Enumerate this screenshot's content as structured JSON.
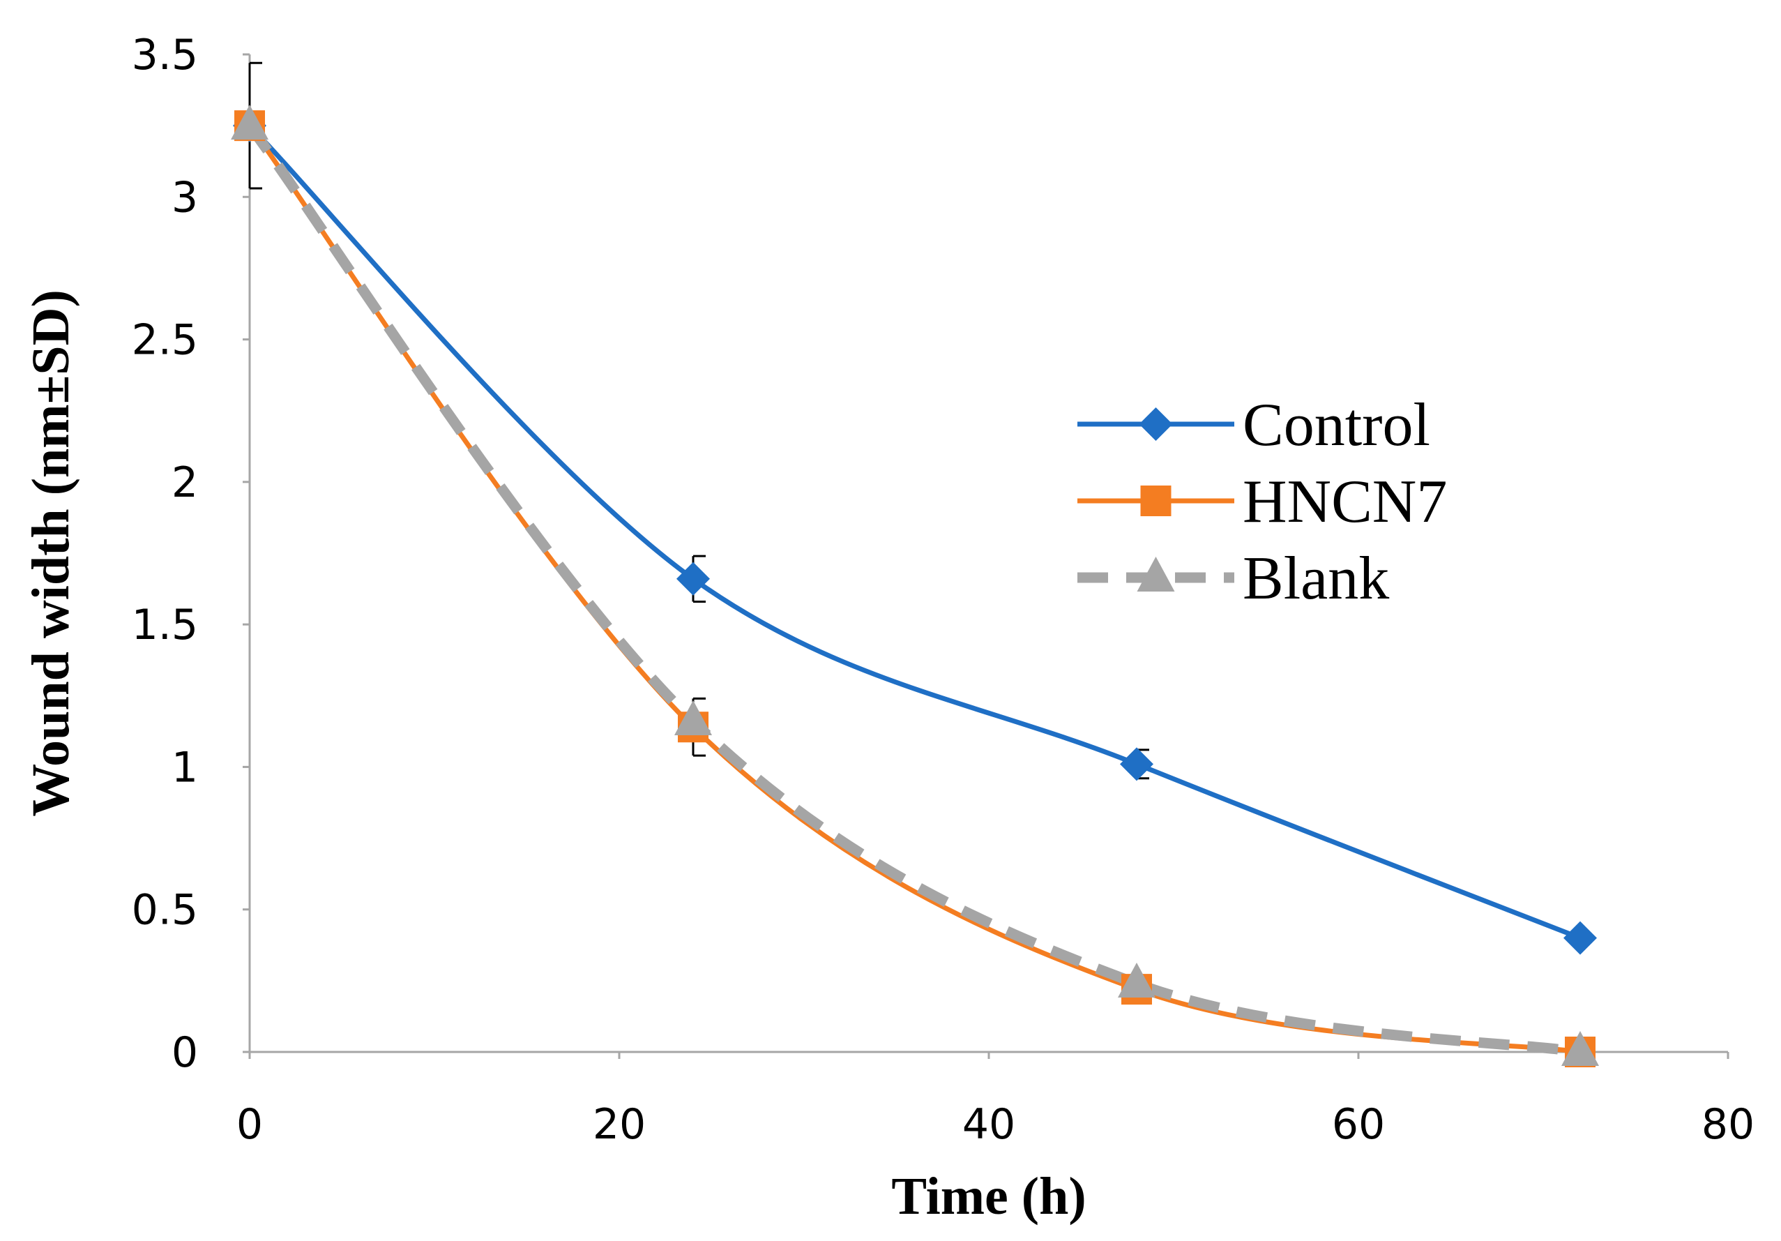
{
  "chart_data": {
    "type": "line",
    "title": "",
    "xlabel": "Time (h)",
    "ylabel": "Wound width (nm±SD)",
    "xlim": [
      0,
      80
    ],
    "ylim": [
      0,
      3.5
    ],
    "x_ticks": [
      "0",
      "20",
      "40",
      "60",
      "80"
    ],
    "y_ticks": [
      "0",
      "0.5",
      "1",
      "1.5",
      "2",
      "2.5",
      "3",
      "3.5"
    ],
    "grid": false,
    "legend_position": "right",
    "series": [
      {
        "name": "Control",
        "color": "#1F6FC5",
        "marker": "diamond",
        "line_style": "solid",
        "x": [
          0,
          24,
          48,
          72
        ],
        "y": [
          3.25,
          1.66,
          1.01,
          0.4
        ],
        "error": [
          0.22,
          0.08,
          0.05,
          0
        ]
      },
      {
        "name": "HNCN7",
        "color": "#F47D21",
        "marker": "square",
        "line_style": "solid",
        "x": [
          0,
          24,
          48,
          72
        ],
        "y": [
          3.25,
          1.14,
          0.22,
          0.0
        ],
        "error": [
          0,
          0.1,
          0,
          0
        ]
      },
      {
        "name": "Blank",
        "color": "#A5A5A5",
        "marker": "triangle",
        "line_style": "dashed",
        "x": [
          0,
          24,
          48,
          72
        ],
        "y": [
          3.25,
          1.16,
          0.24,
          0.0
        ],
        "error": [
          0,
          0,
          0,
          0
        ]
      }
    ]
  }
}
